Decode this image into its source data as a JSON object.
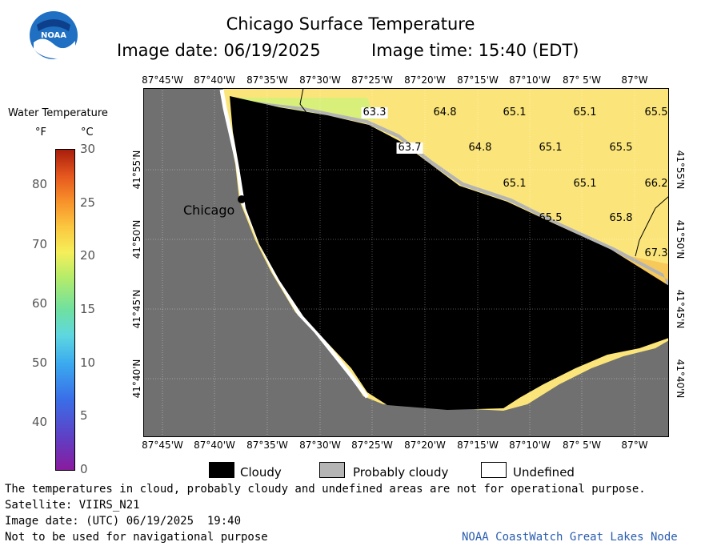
{
  "header": {
    "title": "Chicago Surface Temperature",
    "image_date_label": "Image date: 06/19/2025",
    "image_time_label": "Image time: 15:40 (EDT)",
    "logo_text": "NOAA"
  },
  "colorbar": {
    "title": "Water Temperature",
    "unit_f": "°F",
    "unit_c": "°C",
    "f_ticks": [
      "40",
      "50",
      "60",
      "70",
      "80"
    ],
    "c_ticks": [
      "0",
      "5",
      "10",
      "15",
      "20",
      "25",
      "30"
    ]
  },
  "map": {
    "lon_labels": [
      "87°45'W",
      "87°40'W",
      "87°35'W",
      "87°30'W",
      "87°25'W",
      "87°20'W",
      "87°15'W",
      "87°10'W",
      "87° 5'W",
      "87°W"
    ],
    "lat_labels": [
      "41°55'N",
      "41°50'N",
      "41°45'N",
      "41°40'N"
    ],
    "city": "Chicago",
    "temperatures": [
      "63.3",
      "64.8",
      "65.1",
      "65.1",
      "65.5",
      "63.7",
      "64.8",
      "65.1",
      "65.5",
      "65.1",
      "65.1",
      "66.2",
      "65.5",
      "65.8",
      "67.3"
    ],
    "colors": {
      "land": "#707070",
      "cloud": "#000000",
      "probably_cloudy": "#b4b4b4",
      "water_warm": "#fbe57a",
      "water_cool": "#d8ef7a"
    }
  },
  "legend": {
    "cloudy": "Cloudy",
    "probably_cloudy": "Probably cloudy",
    "undefined": "Undefined"
  },
  "footer": {
    "disclaimer": "The temperatures in cloud, probably cloudy and undefined areas are not for operational purpose.",
    "satellite": "Satellite: VIIRS_N21",
    "utc_date": "Image date: (UTC) 06/19/2025  19:40",
    "nav_warning": "Not to be used for navigational purpose",
    "credit": "NOAA CoastWatch Great Lakes Node"
  }
}
